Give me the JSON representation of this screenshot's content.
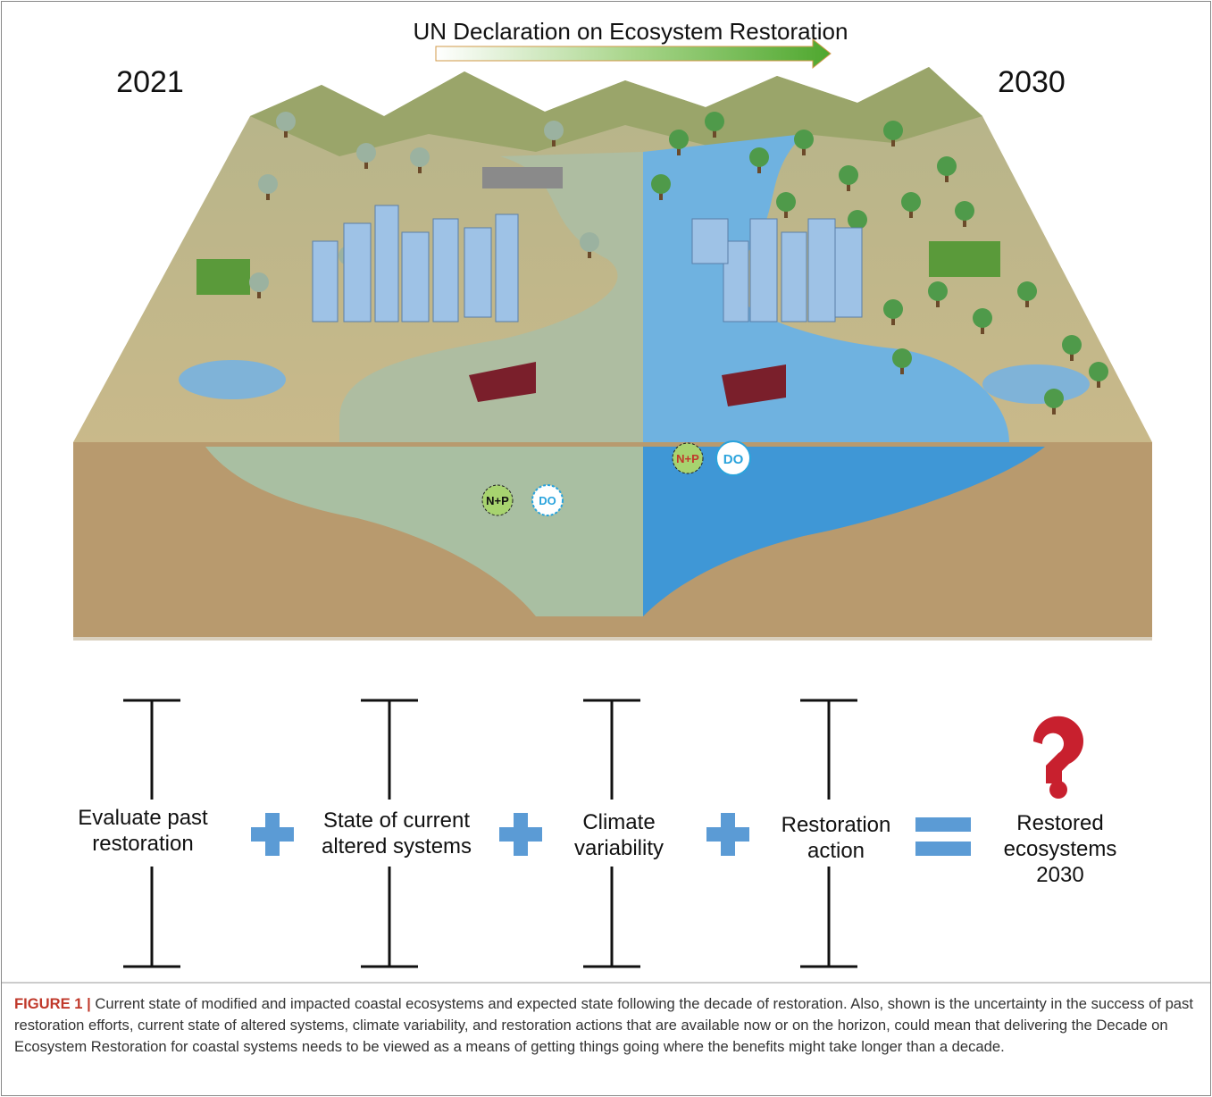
{
  "figure": {
    "banner": "UN Declaration on Ecosystem Restoration",
    "year_start": "2021",
    "year_end": "2030",
    "illustration_labels": {
      "left_nutrients": "N+P",
      "left_oxygen": "DO",
      "right_nutrients": "N+P",
      "right_oxygen": "DO"
    },
    "equation": {
      "terms": [
        {
          "lines": [
            "Evaluate past",
            "restoration"
          ]
        },
        {
          "lines": [
            "State of current",
            "altered systems"
          ]
        },
        {
          "lines": [
            "Climate",
            "variability"
          ]
        },
        {
          "lines": [
            "Restoration",
            "action"
          ]
        }
      ],
      "result": {
        "lines": [
          "Restored",
          "ecosystems",
          "2030"
        ]
      }
    },
    "caption": {
      "label": "FIGURE 1 |",
      "text": "Current state of modified and impacted coastal ecosystems and expected state following the decade of restoration. Also, shown is the uncertainty in the success of past restoration efforts, current state of altered systems, climate variability, and restoration actions that are available now or on the horizon, could mean that delivering the Decade on Ecosystem Restoration for coastal systems needs to be viewed as a means of getting things going where the benefits might take longer than a decade."
    }
  }
}
